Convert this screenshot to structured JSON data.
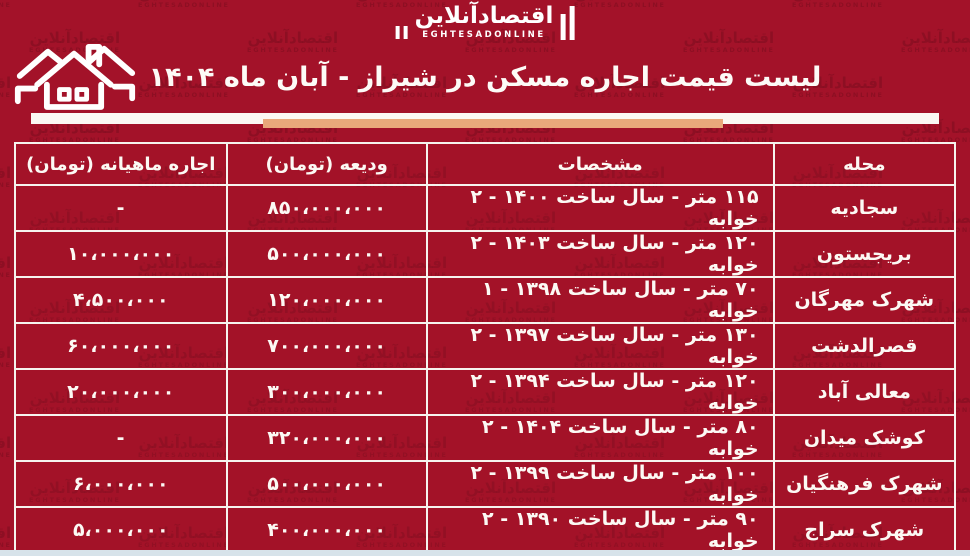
{
  "page": {
    "background_color": "#a31229",
    "accent_underline_color": "#e9a87b",
    "table_border_color": "#f6f3ee",
    "bottom_strip_color": "#d7e3ea"
  },
  "logo": {
    "farsi": "اقتصادآنلاین",
    "latin": "EGHTESADONLINE"
  },
  "chart_data": {
    "type": "table",
    "title": "لیست قیمت اجاره مسکن در شیراز - آبان ماه ۱۴۰۴",
    "columns": [
      "محله",
      "مشخصات",
      "ودیعه (تومان)",
      "اجاره ماهیانه (تومان)"
    ],
    "rows": [
      {
        "neighborhood": "سجادیه",
        "specs": "۱۱۵ متر - سال ساخت ۱۴۰۰ - ۲ خوابه",
        "deposit_toman": "۸۵۰،۰۰۰،۰۰۰",
        "monthly_rent_toman": "-"
      },
      {
        "neighborhood": "بریجستون",
        "specs": "۱۲۰ متر - سال ساخت ۱۴۰۳ - ۲ خوابه",
        "deposit_toman": "۵۰۰،۰۰۰،۰۰۰",
        "monthly_rent_toman": "۱۰،۰۰۰،۰۰۰"
      },
      {
        "neighborhood": "شهرک مهرگان",
        "specs": "۷۰ متر - سال ساخت ۱۳۹۸ - ۱ خوابه",
        "deposit_toman": "۱۲۰،۰۰۰،۰۰۰",
        "monthly_rent_toman": "۴،۵۰۰،۰۰۰"
      },
      {
        "neighborhood": "قصرالدشت",
        "specs": "۱۳۰ متر - سال ساخت ۱۳۹۷ - ۲ خوابه",
        "deposit_toman": "۷۰۰،۰۰۰،۰۰۰",
        "monthly_rent_toman": "۶۰،۰۰۰،۰۰۰"
      },
      {
        "neighborhood": "معالی آباد",
        "specs": "۱۲۰ متر - سال ساخت ۱۳۹۴ - ۲ خوابه",
        "deposit_toman": "۳۰۰،۰۰۰،۰۰۰",
        "monthly_rent_toman": "۲۰،۰۰۰،۰۰۰"
      },
      {
        "neighborhood": "کوشک میدان",
        "specs": "۸۰ متر - سال ساخت ۱۴۰۴ - ۲ خوابه",
        "deposit_toman": "۳۲۰،۰۰۰،۰۰۰",
        "monthly_rent_toman": "-"
      },
      {
        "neighborhood": "شهرک فرهنگیان",
        "specs": "۱۰۰ متر - سال ساخت ۱۳۹۹ - ۲ خوابه",
        "deposit_toman": "۵۰۰،۰۰۰،۰۰۰",
        "monthly_rent_toman": "۶،۰۰۰،۰۰۰"
      },
      {
        "neighborhood": "شهرک سراج",
        "specs": "۹۰ متر - سال ساخت ۱۳۹۰ - ۲ خوابه",
        "deposit_toman": "۴۰۰،۰۰۰،۰۰۰",
        "monthly_rent_toman": "۵،۰۰۰،۰۰۰"
      }
    ]
  }
}
